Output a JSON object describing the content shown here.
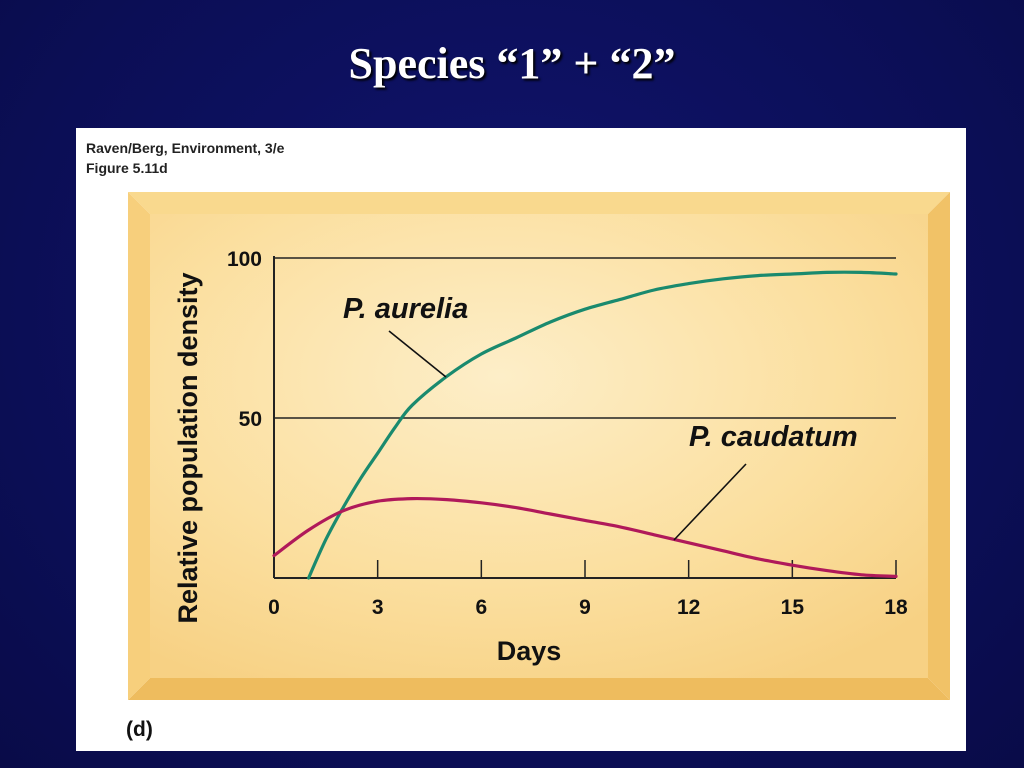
{
  "slide": {
    "title": "Species “1” + “2”"
  },
  "figure": {
    "credit_line1": "Raven/Berg, Environment, 3/e",
    "credit_line2": "Figure 5.11d",
    "panel_label": "(d)"
  },
  "colors": {
    "background": "#0c0f5a",
    "panel_fill": "#fbdf9f",
    "panel_bevel": "#f4c56e",
    "aurelia_line": "#1a8a6e",
    "caudatum_line": "#b0195a"
  },
  "chart_data": {
    "type": "line",
    "xlabel": "Days",
    "ylabel": "Relative population density",
    "xlim": [
      0,
      18
    ],
    "ylim": [
      0,
      100
    ],
    "x_ticks": [
      0,
      3,
      6,
      9,
      12,
      15,
      18
    ],
    "y_ticks": [
      50,
      100
    ],
    "horizontal_gridlines_at": [
      50,
      100
    ],
    "series": [
      {
        "name": "P. aurelia",
        "color": "#1a8a6e",
        "x": [
          1,
          1.5,
          2,
          2.5,
          3,
          3.5,
          4,
          5,
          6,
          7,
          8,
          9,
          10,
          11,
          12,
          13,
          14,
          15,
          16,
          17,
          18
        ],
        "y": [
          0,
          12,
          22,
          31,
          39,
          47,
          54,
          63,
          70,
          75,
          80,
          84,
          87,
          90,
          92,
          93.5,
          94.5,
          95,
          95.5,
          95.5,
          95
        ]
      },
      {
        "name": "P. caudatum",
        "color": "#b0195a",
        "x": [
          0,
          1,
          2,
          3,
          4,
          5,
          6,
          7,
          8,
          9,
          10,
          11,
          12,
          13,
          14,
          15,
          16,
          17,
          18
        ],
        "y": [
          7,
          15,
          21,
          24,
          24.8,
          24.5,
          23.5,
          22,
          20,
          18,
          16,
          13.5,
          11,
          8.5,
          6,
          4,
          2.3,
          1,
          0.5
        ]
      }
    ]
  }
}
